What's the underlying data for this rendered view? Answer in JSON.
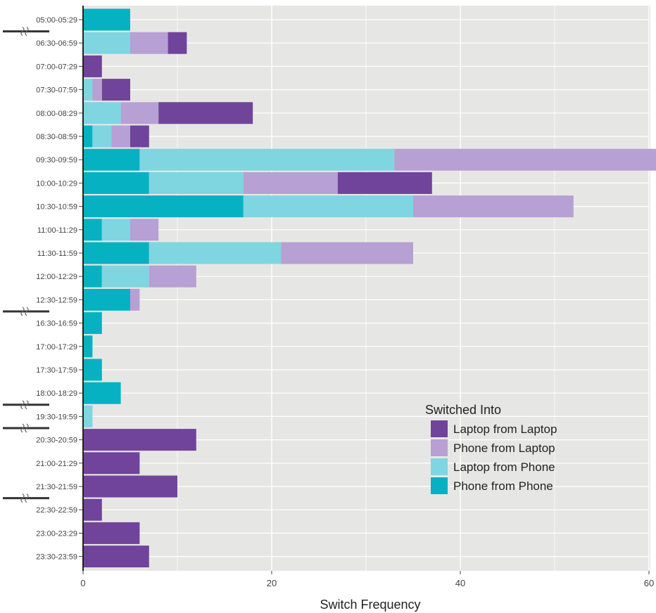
{
  "chart_data": {
    "type": "bar",
    "orientation": "horizontal",
    "stacked": true,
    "title": "",
    "xlabel": "Switch Frequency",
    "ylabel": "",
    "xlim": [
      0,
      60
    ],
    "x_ticks": [
      "0",
      "20",
      "40",
      "60"
    ],
    "grid": true,
    "legend_title": "Switched Into",
    "legend_position": "bottom-right",
    "categories": [
      "05:00-05:29",
      "06:30-06:59",
      "07:00-07:29",
      "07:30-07:59",
      "08:00-08:29",
      "08:30-08:59",
      "09:30-09:59",
      "10:00-10:29",
      "10:30-10:59",
      "11:00-11:29",
      "11:30-11:59",
      "12:00-12:29",
      "12:30-12:59",
      "16:30-16:59",
      "17:00-17:29",
      "17:30-17:59",
      "18:00-18:29",
      "19:30-19:59",
      "20:30-20:59",
      "21:00-21:29",
      "21:30-21:59",
      "22:30-22:59",
      "23:00-23:29",
      "23:30-23:59"
    ],
    "axis_breaks_after": [
      "05:00-05:29",
      "12:30-12:59",
      "18:00-18:29",
      "19:30-19:59",
      "21:30-21:59"
    ],
    "series": [
      {
        "name": "Phone from Phone",
        "color": "#06B2C2",
        "values": [
          5,
          0,
          0,
          0,
          0,
          1,
          6,
          7,
          17,
          2,
          7,
          2,
          5,
          2,
          1,
          2,
          4,
          0,
          0,
          0,
          0,
          0,
          0,
          0
        ]
      },
      {
        "name": "Laptop from Phone",
        "color": "#7FD5E0",
        "values": [
          0,
          5,
          0,
          1,
          4,
          2,
          27,
          10,
          18,
          3,
          14,
          5,
          0,
          0,
          0,
          0,
          0,
          1,
          0,
          0,
          0,
          0,
          0,
          0
        ]
      },
      {
        "name": "Phone from Laptop",
        "color": "#B7A0D3",
        "values": [
          0,
          4,
          0,
          1,
          4,
          2,
          28,
          10,
          17,
          3,
          14,
          5,
          1,
          0,
          0,
          0,
          0,
          0,
          0,
          0,
          0,
          0,
          0,
          0
        ]
      },
      {
        "name": "Laptop from Laptop",
        "color": "#70449B",
        "values": [
          0,
          2,
          2,
          3,
          10,
          2,
          0,
          10,
          0,
          0,
          0,
          0,
          0,
          0,
          0,
          0,
          0,
          0,
          12,
          6,
          10,
          2,
          6,
          7
        ]
      }
    ],
    "legend_order": [
      "Laptop from Laptop",
      "Phone from Laptop",
      "Laptop from Phone",
      "Phone from Phone"
    ]
  }
}
